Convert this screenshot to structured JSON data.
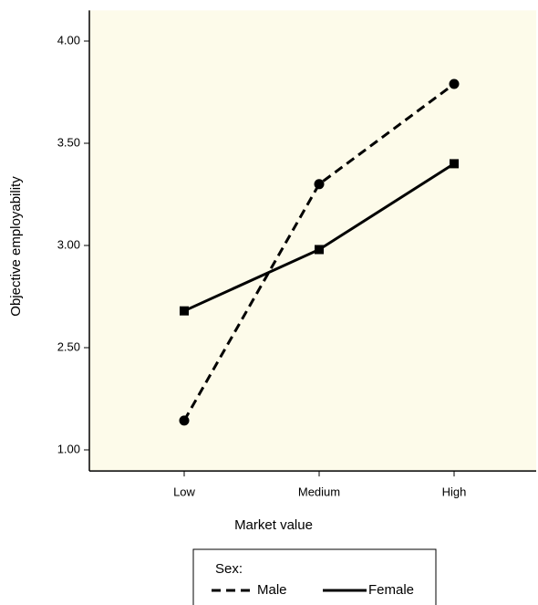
{
  "chart_data": {
    "type": "line",
    "x_label": "Market value",
    "y_label": "Objective employability",
    "categories": [
      "Low",
      "Medium",
      "High"
    ],
    "series": [
      {
        "name": "Male",
        "color": "#000000",
        "dash": true,
        "marker": "circle",
        "values": [
          1.43,
          3.3,
          3.79
        ]
      },
      {
        "name": "Female",
        "color": "#000000",
        "dash": false,
        "marker": "square",
        "values": [
          2.68,
          2.98,
          3.4
        ]
      }
    ],
    "ylim": [
      0.69,
      4.15
    ],
    "yticks": [
      {
        "value": 1,
        "label": "1.00"
      },
      {
        "value": 2.5,
        "label": "2.50"
      },
      {
        "value": 3,
        "label": "3.00"
      },
      {
        "value": 3.5,
        "label": "3.50"
      },
      {
        "value": 4,
        "label": "4.00"
      }
    ],
    "legend_title": "Sex:",
    "legend": "bottom",
    "background": "#fdfbea"
  }
}
